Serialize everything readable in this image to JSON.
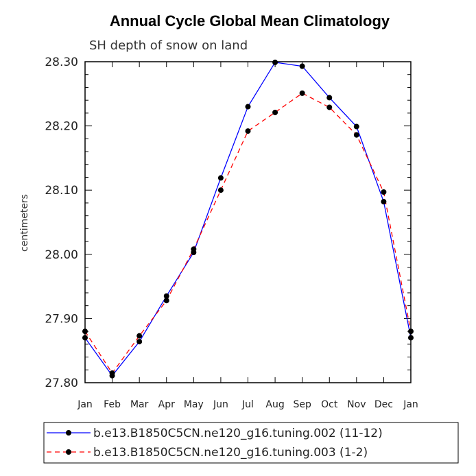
{
  "chart_data": {
    "type": "line",
    "title": "Annual Cycle Global Mean Climatology",
    "subtitle": "SH depth of snow on land",
    "xlabel": "",
    "ylabel": "centimeters",
    "categories": [
      "Jan",
      "Feb",
      "Mar",
      "Apr",
      "May",
      "Jun",
      "Jul",
      "Aug",
      "Sep",
      "Oct",
      "Nov",
      "Dec",
      "Jan"
    ],
    "ylim": [
      27.8,
      28.3
    ],
    "yticks": [
      "27.80",
      "27.90",
      "28.00",
      "28.10",
      "28.20",
      "28.30"
    ],
    "series": [
      {
        "name": "b.e13.B1850C5CN.ne120_g16.tuning.002 (11-12)",
        "color": "#0000ff",
        "dash": "solid",
        "values": [
          27.87,
          27.811,
          27.864,
          27.935,
          28.003,
          28.119,
          28.23,
          28.299,
          28.293,
          28.244,
          28.199,
          28.082,
          27.87
        ]
      },
      {
        "name": "b.e13.B1850C5CN.ne120_g16.tuning.003 (1-2)",
        "color": "#ff0000",
        "dash": "dashed",
        "values": [
          27.88,
          27.815,
          27.873,
          27.928,
          28.008,
          28.1,
          28.192,
          28.221,
          28.251,
          28.229,
          28.186,
          28.097,
          27.88
        ]
      }
    ]
  }
}
